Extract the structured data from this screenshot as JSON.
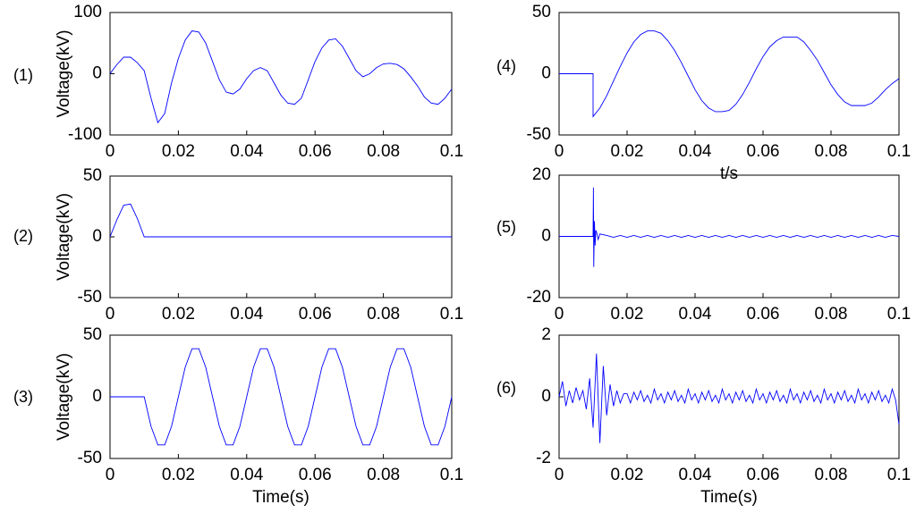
{
  "chart_data": [
    {
      "type": "line",
      "panel_label": "(1)",
      "y_label": "Voltage(kV)",
      "color": "#0000ff",
      "xlim": [
        0,
        0.1
      ],
      "ylim": [
        -100,
        100
      ],
      "xticks": [
        0,
        0.02,
        0.04,
        0.06,
        0.08,
        0.1
      ],
      "yticks": [
        -100,
        0,
        100
      ],
      "x": [
        0,
        0.002,
        0.004,
        0.006,
        0.008,
        0.01,
        0.012,
        0.014,
        0.016,
        0.018,
        0.02,
        0.022,
        0.024,
        0.026,
        0.028,
        0.03,
        0.032,
        0.034,
        0.036,
        0.038,
        0.04,
        0.042,
        0.044,
        0.046,
        0.048,
        0.05,
        0.052,
        0.054,
        0.056,
        0.058,
        0.06,
        0.062,
        0.064,
        0.066,
        0.068,
        0.07,
        0.072,
        0.074,
        0.076,
        0.078,
        0.08,
        0.082,
        0.084,
        0.086,
        0.088,
        0.09,
        0.092,
        0.094,
        0.096,
        0.098,
        0.1
      ],
      "values": [
        0,
        15,
        27,
        27,
        18,
        5,
        -40,
        -80,
        -65,
        -15,
        25,
        55,
        70,
        68,
        50,
        20,
        -10,
        -30,
        -33,
        -25,
        -8,
        5,
        10,
        5,
        -15,
        -35,
        -48,
        -50,
        -40,
        -10,
        20,
        42,
        55,
        57,
        45,
        25,
        5,
        -5,
        0,
        10,
        16,
        17,
        15,
        8,
        -5,
        -20,
        -38,
        -48,
        -50,
        -40,
        -25
      ]
    },
    {
      "type": "line",
      "panel_label": "(2)",
      "y_label": "Voltage(kV)",
      "color": "#0000ff",
      "xlim": [
        0,
        0.1
      ],
      "ylim": [
        -50,
        50
      ],
      "xticks": [
        0,
        0.02,
        0.04,
        0.06,
        0.08,
        0.1
      ],
      "yticks": [
        -50,
        0,
        50
      ],
      "x": [
        0,
        0.002,
        0.004,
        0.006,
        0.008,
        0.01,
        0.1
      ],
      "values": [
        0,
        14,
        26,
        27,
        15,
        0,
        0
      ]
    },
    {
      "type": "line",
      "panel_label": "(3)",
      "y_label": "Voltage(kV)",
      "x_label": "Time(s)",
      "color": "#0000ff",
      "xlim": [
        0,
        0.1
      ],
      "ylim": [
        -50,
        50
      ],
      "xticks": [
        0,
        0.02,
        0.04,
        0.06,
        0.08,
        0.1
      ],
      "yticks": [
        -50,
        0,
        50
      ],
      "x": [
        0,
        0.002,
        0.004,
        0.006,
        0.008,
        0.01,
        0.012,
        0.014,
        0.016,
        0.018,
        0.02,
        0.022,
        0.024,
        0.026,
        0.028,
        0.03,
        0.032,
        0.034,
        0.036,
        0.038,
        0.04,
        0.042,
        0.044,
        0.046,
        0.048,
        0.05,
        0.052,
        0.054,
        0.056,
        0.058,
        0.06,
        0.062,
        0.064,
        0.066,
        0.068,
        0.07,
        0.072,
        0.074,
        0.076,
        0.078,
        0.08,
        0.082,
        0.084,
        0.086,
        0.088,
        0.09,
        0.092,
        0.094,
        0.096,
        0.098,
        0.1
      ],
      "values": [
        0,
        0,
        0,
        0,
        0,
        0,
        -24,
        -39,
        -39,
        -24,
        0,
        24,
        39,
        39,
        24,
        0,
        -24,
        -39,
        -39,
        -24,
        0,
        24,
        39,
        39,
        24,
        0,
        -24,
        -39,
        -39,
        -24,
        0,
        24,
        39,
        39,
        24,
        0,
        -24,
        -39,
        -39,
        -24,
        0,
        24,
        39,
        39,
        24,
        0,
        -24,
        -39,
        -39,
        -24,
        0
      ]
    },
    {
      "type": "line",
      "panel_label": "(4)",
      "x_label": "t/s",
      "color": "#0000ff",
      "xlim": [
        0,
        0.1
      ],
      "ylim": [
        -50,
        50
      ],
      "xticks": [
        0,
        0.02,
        0.04,
        0.06,
        0.08,
        0.1
      ],
      "yticks": [
        -50,
        0,
        50
      ],
      "x": [
        0,
        0.002,
        0.004,
        0.006,
        0.008,
        0.01,
        0.01,
        0.012,
        0.014,
        0.016,
        0.018,
        0.02,
        0.022,
        0.024,
        0.026,
        0.028,
        0.03,
        0.032,
        0.034,
        0.036,
        0.038,
        0.04,
        0.042,
        0.044,
        0.046,
        0.048,
        0.05,
        0.052,
        0.054,
        0.056,
        0.058,
        0.06,
        0.062,
        0.064,
        0.066,
        0.068,
        0.07,
        0.072,
        0.074,
        0.076,
        0.078,
        0.08,
        0.082,
        0.084,
        0.086,
        0.088,
        0.09,
        0.092,
        0.094,
        0.096,
        0.098,
        0.1
      ],
      "values": [
        0,
        0,
        0,
        0,
        0,
        0,
        -35,
        -28,
        -18,
        -6,
        6,
        17,
        26,
        32,
        35,
        35,
        33,
        27,
        19,
        9,
        -2,
        -13,
        -22,
        -28,
        -31,
        -31,
        -30,
        -25,
        -17,
        -7,
        4,
        14,
        22,
        27,
        30,
        30,
        30,
        26,
        19,
        11,
        1,
        -9,
        -17,
        -23,
        -26,
        -26,
        -26,
        -24,
        -19,
        -13,
        -8,
        -4
      ]
    },
    {
      "type": "line",
      "panel_label": "(5)",
      "color": "#0000ff",
      "xlim": [
        0,
        0.1
      ],
      "ylim": [
        -20,
        20
      ],
      "xticks": [
        0,
        0.02,
        0.04,
        0.06,
        0.08,
        0.1
      ],
      "yticks": [
        -20,
        0,
        20
      ],
      "x": [
        0,
        0.01,
        0.0101,
        0.0102,
        0.0104,
        0.0106,
        0.0108,
        0.011,
        0.0115,
        0.012,
        0.014,
        0.016,
        0.018,
        0.02,
        0.022,
        0.024,
        0.026,
        0.028,
        0.03,
        0.032,
        0.034,
        0.036,
        0.038,
        0.04,
        0.042,
        0.044,
        0.046,
        0.048,
        0.05,
        0.052,
        0.054,
        0.056,
        0.058,
        0.06,
        0.062,
        0.064,
        0.066,
        0.068,
        0.07,
        0.072,
        0.074,
        0.076,
        0.078,
        0.08,
        0.082,
        0.084,
        0.086,
        0.088,
        0.09,
        0.092,
        0.094,
        0.096,
        0.098,
        0.1
      ],
      "values": [
        0,
        0,
        16,
        -10,
        5,
        -3,
        2,
        1.5,
        -1,
        0.8,
        0.3,
        -0.3,
        0.3,
        -0.3,
        0.3,
        -0.3,
        0.3,
        -0.3,
        0.3,
        -0.3,
        0.3,
        -0.3,
        0.3,
        -0.3,
        0.3,
        -0.3,
        0.3,
        -0.3,
        0.3,
        -0.3,
        0.3,
        -0.3,
        0.3,
        -0.3,
        0.3,
        -0.3,
        0.3,
        -0.3,
        0.3,
        -0.3,
        0.3,
        -0.3,
        0.3,
        -0.3,
        0.3,
        -0.3,
        0.3,
        -0.3,
        0.3,
        -0.3,
        0.3,
        -0.3,
        0.3,
        0
      ]
    },
    {
      "type": "line",
      "panel_label": "(6)",
      "x_label": "Time(s)",
      "color": "#0000ff",
      "xlim": [
        0,
        0.1
      ],
      "ylim": [
        -2,
        2
      ],
      "xticks": [
        0,
        0.02,
        0.04,
        0.06,
        0.08,
        0.1
      ],
      "yticks": [
        -2,
        0,
        2
      ],
      "x": [
        0,
        0.001,
        0.002,
        0.003,
        0.004,
        0.005,
        0.006,
        0.007,
        0.008,
        0.009,
        0.01,
        0.011,
        0.012,
        0.013,
        0.014,
        0.015,
        0.016,
        0.017,
        0.018,
        0.019,
        0.02,
        0.021,
        0.022,
        0.023,
        0.024,
        0.025,
        0.026,
        0.027,
        0.028,
        0.029,
        0.03,
        0.031,
        0.032,
        0.033,
        0.034,
        0.035,
        0.036,
        0.037,
        0.038,
        0.039,
        0.04,
        0.041,
        0.042,
        0.043,
        0.044,
        0.045,
        0.046,
        0.047,
        0.048,
        0.049,
        0.05,
        0.051,
        0.052,
        0.053,
        0.054,
        0.055,
        0.056,
        0.057,
        0.058,
        0.059,
        0.06,
        0.061,
        0.062,
        0.063,
        0.064,
        0.065,
        0.066,
        0.067,
        0.068,
        0.069,
        0.07,
        0.071,
        0.072,
        0.073,
        0.074,
        0.075,
        0.076,
        0.077,
        0.078,
        0.079,
        0.08,
        0.081,
        0.082,
        0.083,
        0.084,
        0.085,
        0.086,
        0.087,
        0.088,
        0.089,
        0.09,
        0.091,
        0.092,
        0.093,
        0.094,
        0.095,
        0.096,
        0.097,
        0.098,
        0.099,
        0.1
      ],
      "values": [
        0,
        0.5,
        -0.3,
        0.2,
        -0.2,
        0.3,
        -0.1,
        0.2,
        -0.4,
        0.6,
        -1.0,
        1.4,
        -1.5,
        1.0,
        -0.6,
        0.4,
        -0.3,
        0.2,
        -0.2,
        0.1,
        0.1,
        -0.2,
        0.15,
        -0.1,
        0.2,
        -0.15,
        0.05,
        -0.2,
        0.25,
        -0.1,
        0.1,
        -0.2,
        0.15,
        -0.1,
        0.2,
        -0.15,
        0.05,
        -0.2,
        0.25,
        -0.1,
        0.1,
        -0.2,
        0.15,
        -0.1,
        0.2,
        -0.15,
        0.05,
        -0.2,
        0.25,
        -0.1,
        0.1,
        -0.2,
        0.15,
        -0.1,
        0.2,
        -0.15,
        0.05,
        -0.2,
        0.25,
        -0.1,
        0.1,
        -0.2,
        0.15,
        -0.1,
        0.2,
        -0.15,
        0.05,
        -0.2,
        0.25,
        -0.1,
        0.1,
        -0.2,
        0.15,
        -0.1,
        0.2,
        -0.15,
        0.05,
        -0.2,
        0.25,
        -0.1,
        0.1,
        -0.2,
        0.15,
        -0.1,
        0.2,
        -0.15,
        0.05,
        -0.2,
        0.25,
        -0.1,
        0.1,
        -0.2,
        0.15,
        -0.1,
        0.2,
        -0.15,
        0.05,
        -0.2,
        0.25,
        -0.1,
        -0.9
      ]
    }
  ]
}
